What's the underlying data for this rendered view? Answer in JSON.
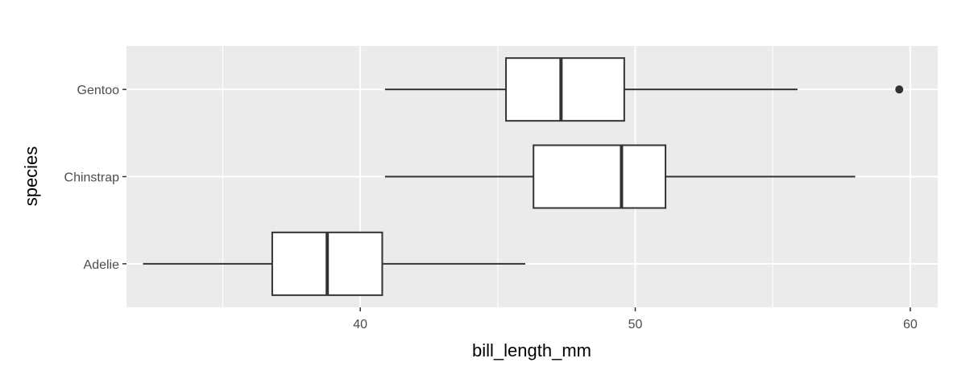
{
  "chart_data": {
    "type": "boxplot",
    "orientation": "horizontal",
    "xlabel": "bill_length_mm",
    "ylabel": "species",
    "xlim": [
      31.5,
      61
    ],
    "x_ticks": [
      40,
      50,
      60
    ],
    "x_tick_labels": [
      "40",
      "50",
      "60"
    ],
    "x_minor_ticks": [
      35,
      45,
      55
    ],
    "categories": [
      "Adelie",
      "Chinstrap",
      "Gentoo"
    ],
    "boxes": [
      {
        "category": "Adelie",
        "lower_whisker": 32.1,
        "q1": 36.8,
        "median": 38.8,
        "q3": 40.8,
        "upper_whisker": 46.0,
        "outliers": []
      },
      {
        "category": "Chinstrap",
        "lower_whisker": 40.9,
        "q1": 46.3,
        "median": 49.5,
        "q3": 51.1,
        "upper_whisker": 58.0,
        "outliers": []
      },
      {
        "category": "Gentoo",
        "lower_whisker": 40.9,
        "q1": 45.3,
        "median": 47.3,
        "q3": 49.6,
        "upper_whisker": 55.9,
        "outliers": [
          59.6
        ]
      }
    ],
    "grid": true,
    "colors": {
      "panel": "#ebebeb",
      "grid": "#ffffff",
      "box_fill": "#ffffff",
      "line": "#333333",
      "tick": "#333333",
      "text": "#4d4d4d"
    }
  }
}
